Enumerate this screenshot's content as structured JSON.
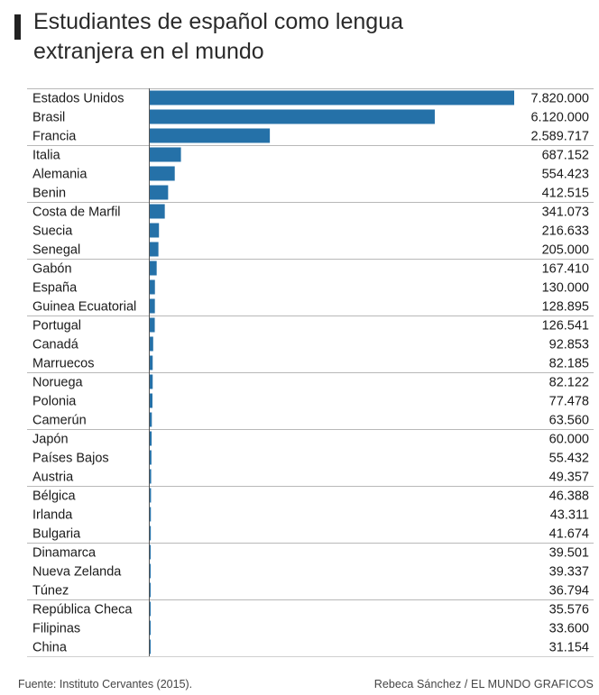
{
  "chart_data": {
    "type": "bar",
    "orientation": "horizontal",
    "title": "Estudiantes de español como lengua\nextranjera en el mundo",
    "bar_color": "#2571a8",
    "categories": [
      "Estados Unidos",
      "Brasil",
      "Francia",
      "Italia",
      "Alemania",
      "Benin",
      "Costa de Marfil",
      "Suecia",
      "Senegal",
      "Gabón",
      "España",
      "Guinea Ecuatorial",
      "Portugal",
      "Canadá",
      "Marruecos",
      "Noruega",
      "Polonia",
      "Camerún",
      "Japón",
      "Países Bajos",
      "Austria",
      "Bélgica",
      "Irlanda",
      "Bulgaria",
      "Dinamarca",
      "Nueva Zelanda",
      "Túnez",
      "República Checa",
      "Filipinas",
      "China"
    ],
    "values": [
      7820000,
      6120000,
      2589717,
      687152,
      554423,
      412515,
      341073,
      216633,
      205000,
      167410,
      130000,
      128895,
      126541,
      92853,
      82185,
      82122,
      77478,
      63560,
      60000,
      55432,
      49357,
      46388,
      43311,
      41674,
      39501,
      39337,
      36794,
      35576,
      33600,
      31154
    ],
    "value_labels": [
      "7.820.000",
      "6.120.000",
      "2.589.717",
      "687.152",
      "554.423",
      "412.515",
      "341.073",
      "216.633",
      "205.000",
      "167.410",
      "130.000",
      "128.895",
      "126.541",
      "92.853",
      "82.185",
      "82.122",
      "77.478",
      "63.560",
      "60.000",
      "55.432",
      "49.357",
      "46.388",
      "43.311",
      "41.674",
      "39.501",
      "39.337",
      "36.794",
      "35.576",
      "33.600",
      "31.154"
    ],
    "xlim": [
      0,
      7820000
    ],
    "group_size": 3
  },
  "footer": {
    "source": "Fuente: Instituto Cervantes (2015).",
    "credit": "Rebeca Sánchez / EL MUNDO GRAFICOS"
  }
}
